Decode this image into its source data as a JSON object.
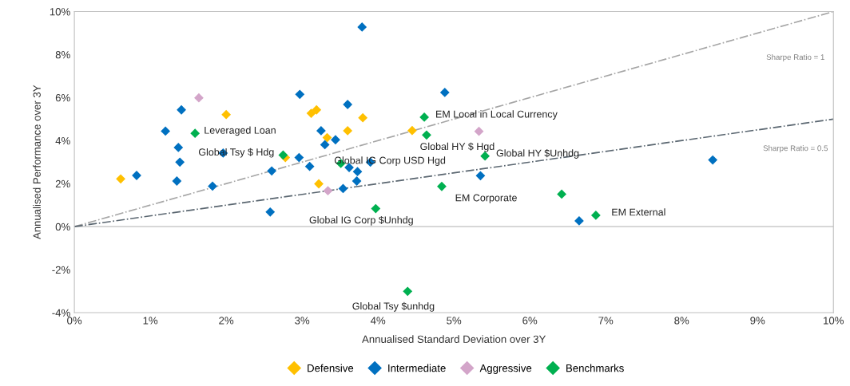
{
  "chart_data": {
    "type": "scatter",
    "xlabel": "Annualised Standard Deviation over 3Y",
    "ylabel": "Annualised Performance over 3Y",
    "marker": "diamond",
    "legend": "bottom",
    "grid": false,
    "xlim": [
      0,
      10
    ],
    "ylim": [
      -4,
      10
    ],
    "xticks": [
      {
        "value": 0,
        "label": "0%"
      },
      {
        "value": 1,
        "label": "1%"
      },
      {
        "value": 2,
        "label": "2%"
      },
      {
        "value": 3,
        "label": "3%"
      },
      {
        "value": 4,
        "label": "4%"
      },
      {
        "value": 5,
        "label": "5%"
      },
      {
        "value": 6,
        "label": "6%"
      },
      {
        "value": 7,
        "label": "7%"
      },
      {
        "value": 8,
        "label": "8%"
      },
      {
        "value": 9,
        "label": "9%"
      },
      {
        "value": 10,
        "label": "10%"
      }
    ],
    "yticks": [
      {
        "value": -4,
        "label": "-4%"
      },
      {
        "value": -2,
        "label": "-2%"
      },
      {
        "value": 0,
        "label": "0%"
      },
      {
        "value": 2,
        "label": "2%"
      },
      {
        "value": 4,
        "label": "4%"
      },
      {
        "value": 6,
        "label": "6%"
      },
      {
        "value": 8,
        "label": "8%"
      },
      {
        "value": 10,
        "label": "10%"
      }
    ],
    "ref_lines": [
      {
        "axis": "y",
        "value": 0,
        "color": "#bfbfbf",
        "line_style": "solid"
      }
    ],
    "series": [
      {
        "type": "line",
        "name": "Sharpe Ratio = 1",
        "color": "#a6a6a6",
        "line_style": "dashdot",
        "marker": "none",
        "x": [
          0,
          10
        ],
        "values": [
          0,
          10
        ]
      },
      {
        "type": "line",
        "name": "Sharpe Ratio = 0.5",
        "color": "#5a6670",
        "line_style": "dashdot",
        "marker": "none",
        "x": [
          0,
          10
        ],
        "values": [
          0,
          5
        ]
      },
      {
        "name": "Defensive",
        "color": "#ffc000",
        "x": [
          0.61,
          2.0,
          3.12,
          3.19,
          3.8,
          3.6,
          3.33,
          3.22,
          2.78,
          4.45
        ],
        "values": [
          2.22,
          5.21,
          5.27,
          5.43,
          5.06,
          4.46,
          4.14,
          1.99,
          3.21,
          4.47
        ]
      },
      {
        "name": "Intermediate",
        "color": "#0070c0",
        "x": [
          3.79,
          2.97,
          1.41,
          1.2,
          1.37,
          1.39,
          1.35,
          0.82,
          1.96,
          1.82,
          2.58,
          2.6,
          2.96,
          3.1,
          3.25,
          3.3,
          3.44,
          3.6,
          3.54,
          3.62,
          3.73,
          3.72,
          3.9,
          4.88,
          5.35,
          8.41,
          6.65
        ],
        "values": [
          9.28,
          6.15,
          5.43,
          4.44,
          3.68,
          3.0,
          2.12,
          2.38,
          3.42,
          1.88,
          0.68,
          2.59,
          3.21,
          2.8,
          4.46,
          3.81,
          4.04,
          5.68,
          1.77,
          2.75,
          2.56,
          2.12,
          3.0,
          6.24,
          2.37,
          3.1,
          0.27
        ]
      },
      {
        "name": "Aggressive",
        "color": "#d3a5c9",
        "x": [
          1.64,
          3.34,
          5.33
        ],
        "values": [
          5.99,
          1.67,
          4.43
        ]
      },
      {
        "name": "Benchmarks",
        "color": "#00b050",
        "x": [
          1.59,
          2.75,
          3.51,
          3.97,
          4.61,
          4.64,
          5.41,
          4.84,
          6.42,
          6.87,
          4.39
        ],
        "values": [
          4.34,
          3.33,
          2.94,
          0.84,
          5.09,
          4.26,
          3.28,
          1.87,
          1.51,
          0.53,
          -3.01
        ]
      }
    ],
    "annotations": [
      {
        "text": "Leveraged Loan",
        "x": 1.59,
        "y": 4.34
      },
      {
        "text": "Global Tsy $ Hdg",
        "x": 2.75,
        "y": 3.33
      },
      {
        "text": "Global IG Corp USD Hgd",
        "x": 3.51,
        "y": 2.94
      },
      {
        "text": "Global IG Corp $Unhdg",
        "x": 3.97,
        "y": 0.84
      },
      {
        "text": "EM Local in Local Currency",
        "x": 4.61,
        "y": 5.09
      },
      {
        "text": "Global HY $ Hgd",
        "x": 4.64,
        "y": 4.26
      },
      {
        "text": "Global HY $Unhdg",
        "x": 5.41,
        "y": 3.28
      },
      {
        "text": "EM Corporate",
        "x": 4.84,
        "y": 1.87
      },
      {
        "text": "EM External",
        "x": 6.87,
        "y": 0.53
      },
      {
        "text": "Global Tsy $unhdg",
        "x": 4.39,
        "y": -3.01
      }
    ]
  }
}
